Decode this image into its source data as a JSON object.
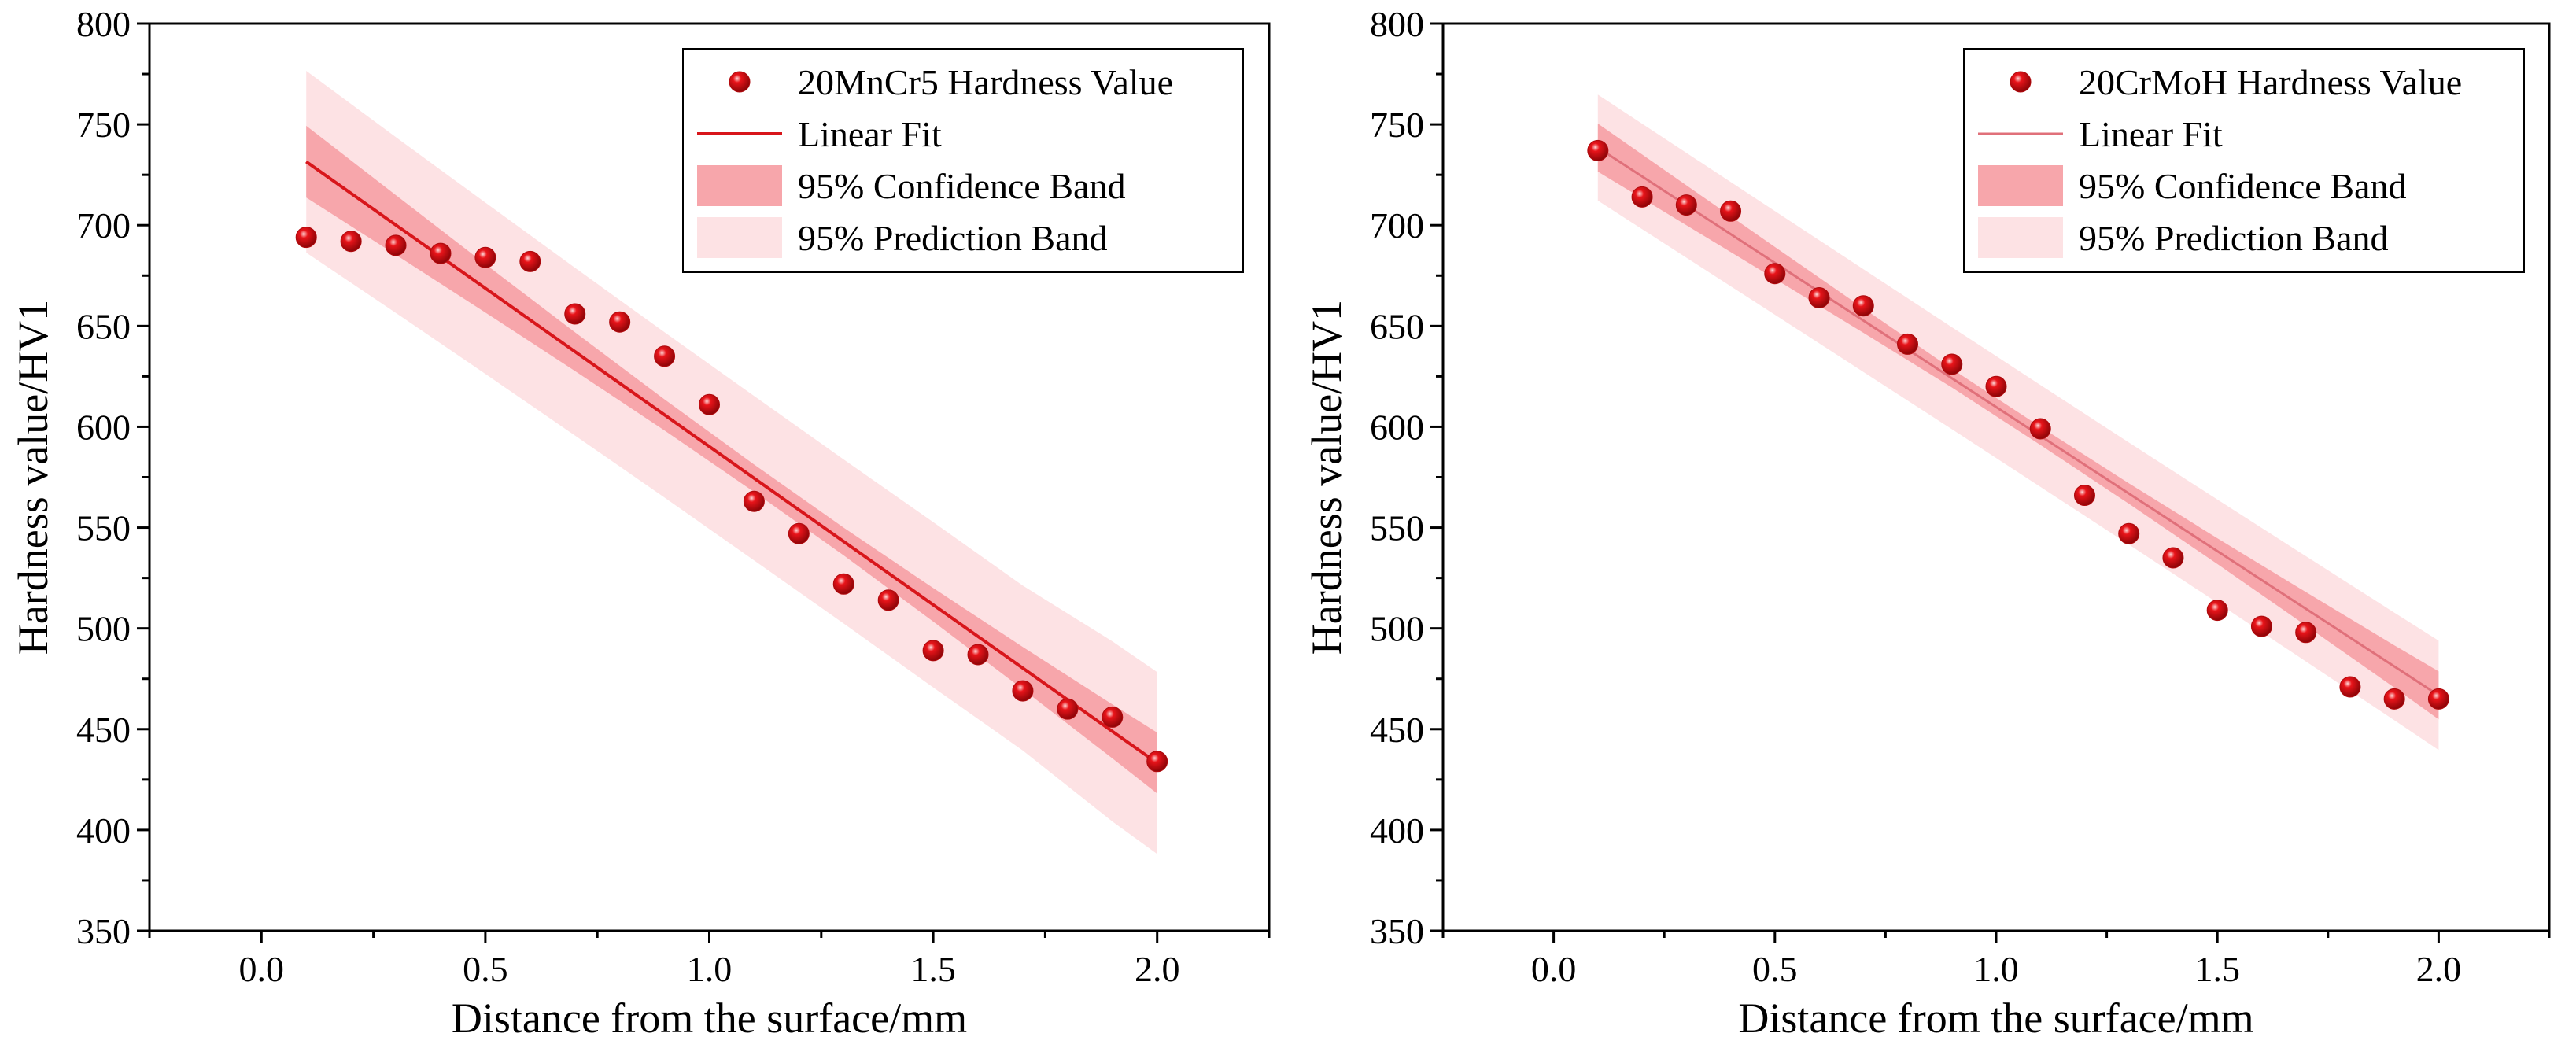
{
  "colors": {
    "point": "#e8141a",
    "fit_line_left": "#d8161b",
    "fit_line_right": "#e0707a",
    "confidence_band": "#f7a6ab",
    "prediction_band": "#fde2e4"
  },
  "chart_data": [
    {
      "type": "scatter",
      "title": "",
      "xlabel": "Distance from the surface/mm",
      "ylabel": "Hardness value/HV1",
      "xlim": [
        -0.25,
        2.25
      ],
      "ylim": [
        350,
        800
      ],
      "xticks": [
        0.0,
        0.5,
        1.0,
        1.5,
        2.0
      ],
      "xtick_labels": [
        "0.0",
        "0.5",
        "1.0",
        "1.5",
        "2.0"
      ],
      "yticks": [
        350,
        400,
        450,
        500,
        550,
        600,
        650,
        700,
        750,
        800
      ],
      "ytick_labels": [
        "350",
        "400",
        "450",
        "500",
        "550",
        "600",
        "650",
        "700",
        "750",
        "800"
      ],
      "grid": false,
      "legend_position": "top-right",
      "legend": {
        "points": "20MnCr5 Hardness Value",
        "fit": "Linear Fit",
        "confidence": "95% Confidence Band",
        "prediction": "95% Prediction Band"
      },
      "series": [
        {
          "name": "20MnCr5 Hardness Value",
          "x": [
            0.1,
            0.2,
            0.3,
            0.4,
            0.5,
            0.6,
            0.7,
            0.8,
            0.9,
            1.0,
            1.1,
            1.2,
            1.3,
            1.4,
            1.5,
            1.6,
            1.7,
            1.8,
            1.9,
            2.0
          ],
          "y": [
            694,
            692,
            690,
            686,
            684,
            682,
            656,
            652,
            635,
            611,
            563,
            547,
            522,
            514,
            489,
            487,
            469,
            460,
            456,
            434
          ]
        }
      ],
      "fit": {
        "name": "Linear Fit",
        "x": [
          0.1,
          0.3,
          0.5,
          0.7,
          0.9,
          1.1,
          1.3,
          1.5,
          1.7,
          1.9,
          2.0
        ],
        "y": [
          731.5,
          700.1,
          668.7,
          637.3,
          605.9,
          574.5,
          543.1,
          511.7,
          480.3,
          448.9,
          433.2
        ],
        "confidence_lower": [
          713.7,
          685.3,
          656.7,
          627.7,
          598.2,
          567.7,
          536.2,
          503.4,
          469.8,
          435.5,
          418.1
        ],
        "confidence_upper": [
          749.3,
          714.9,
          680.7,
          646.9,
          613.6,
          581.3,
          550.0,
          520.0,
          490.8,
          462.3,
          448.3
        ],
        "prediction_lower": [
          686.4,
          656.5,
          626.2,
          595.7,
          564.9,
          533.7,
          502.4,
          470.7,
          439.4,
          404.2,
          388.1
        ],
        "prediction_upper": [
          776.6,
          743.7,
          711.2,
          678.9,
          646.9,
          615.3,
          583.8,
          552.7,
          521.2,
          493.6,
          478.3
        ]
      }
    },
    {
      "type": "scatter",
      "title": "",
      "xlabel": "Distance from the surface/mm",
      "ylabel": "Hardness value/HV1",
      "xlim": [
        -0.25,
        2.25
      ],
      "ylim": [
        350,
        800
      ],
      "xticks": [
        0.0,
        0.5,
        1.0,
        1.5,
        2.0
      ],
      "xtick_labels": [
        "0.0",
        "0.5",
        "1.0",
        "1.5",
        "2.0"
      ],
      "yticks": [
        350,
        400,
        450,
        500,
        550,
        600,
        650,
        700,
        750,
        800
      ],
      "ytick_labels": [
        "350",
        "400",
        "450",
        "500",
        "550",
        "600",
        "650",
        "700",
        "750",
        "800"
      ],
      "grid": false,
      "legend_position": "top-right",
      "legend": {
        "points": "20CrMoH Hardness Value",
        "fit": "Linear Fit",
        "confidence": "95% Confidence Band",
        "prediction": "95% Prediction Band"
      },
      "series": [
        {
          "name": "20CrMoH Hardness Value",
          "x": [
            0.1,
            0.2,
            0.3,
            0.4,
            0.5,
            0.6,
            0.7,
            0.8,
            0.9,
            1.0,
            1.1,
            1.2,
            1.3,
            1.4,
            1.5,
            1.6,
            1.7,
            1.8,
            1.9,
            2.0
          ],
          "y": [
            737,
            714,
            710,
            707,
            676,
            664,
            660,
            641,
            631,
            620,
            599,
            566,
            547,
            535,
            509,
            501,
            498,
            471,
            465,
            465
          ]
        }
      ],
      "fit": {
        "name": "Linear Fit",
        "x": [
          0.1,
          0.3,
          0.5,
          0.7,
          0.9,
          1.1,
          1.3,
          1.5,
          1.7,
          1.9,
          2.0
        ],
        "y": [
          738.5,
          709.9,
          681.3,
          652.7,
          624.1,
          595.5,
          566.9,
          538.3,
          509.7,
          481.1,
          466.8
        ],
        "confidence_lower": [
          726.6,
          700.0,
          673.4,
          646.6,
          619.5,
          591.0,
          561.8,
          531.9,
          501.4,
          470.6,
          454.9
        ],
        "confidence_upper": [
          750.4,
          719.8,
          689.2,
          658.8,
          628.7,
          600.0,
          572.0,
          544.7,
          518.0,
          491.6,
          478.7
        ],
        "prediction_lower": [
          712.2,
          683.9,
          655.6,
          627.2,
          598.8,
          570.2,
          541.6,
          512.7,
          483.6,
          454.4,
          439.7
        ],
        "prediction_upper": [
          764.8,
          735.9,
          707.0,
          678.2,
          649.4,
          620.8,
          592.2,
          563.9,
          535.8,
          507.8,
          493.9
        ]
      }
    }
  ]
}
